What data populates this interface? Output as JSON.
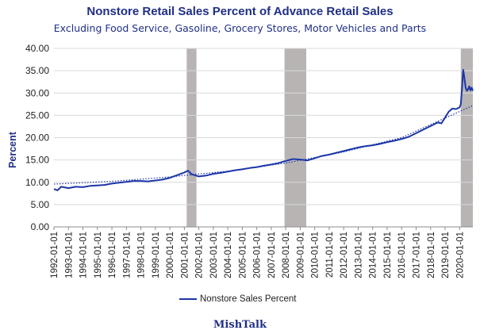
{
  "chart_data": {
    "type": "line",
    "title": "Nonstore Retail Sales Percent of Advance Retail Sales",
    "subtitle": "Excluding Food Service, Gasoline, Grocery Stores, Motor Vehicles and Parts",
    "ylabel": "Percent",
    "xlabel": "",
    "footer": "MishTalk",
    "ylim": [
      0,
      40
    ],
    "yticks": [
      "0.00",
      "5.00",
      "10.00",
      "15.00",
      "20.00",
      "25.00",
      "30.00",
      "35.00",
      "40.00"
    ],
    "xticks": [
      "1992-01-01",
      "1993-01-01",
      "1994-01-01",
      "1995-01-01",
      "1996-01-01",
      "1997-01-01",
      "1998-01-01",
      "1999-01-01",
      "2000-01-01",
      "2001-01-01",
      "2002-01-01",
      "2003-01-01",
      "2004-01-01",
      "2005-01-01",
      "2006-01-01",
      "2007-01-01",
      "2008-01-01",
      "2009-01-01",
      "2010-01-01",
      "2011-01-01",
      "2012-01-01",
      "2013-01-01",
      "2014-01-01",
      "2015-01-01",
      "2016-01-01",
      "2017-01-01",
      "2018-01-01",
      "2019-01-01",
      "2020-01-01"
    ],
    "xlim": [
      "1992-01-01",
      "2020-12-01"
    ],
    "grid": "horizontal",
    "legend": "bottom",
    "recessions": [
      [
        "2001-03-01",
        "2001-11-01"
      ],
      [
        "2007-12-01",
        "2009-06-01"
      ],
      [
        "2020-02-01",
        "2020-12-01"
      ]
    ],
    "series": [
      {
        "name": "Nonstore Sales Percent",
        "color": "#1a35a8",
        "style": "solid",
        "x": [
          "1992-01-01",
          "1992-04-01",
          "1992-07-01",
          "1993-01-01",
          "1993-07-01",
          "1994-01-01",
          "1994-07-01",
          "1995-01-01",
          "1995-07-01",
          "1996-01-01",
          "1996-07-01",
          "1997-01-01",
          "1997-07-01",
          "1998-01-01",
          "1998-07-01",
          "1999-01-01",
          "1999-07-01",
          "2000-01-01",
          "2000-07-01",
          "2001-01-01",
          "2001-04-01",
          "2001-07-01",
          "2002-01-01",
          "2002-07-01",
          "2003-01-01",
          "2003-07-01",
          "2004-01-01",
          "2004-07-01",
          "2005-01-01",
          "2005-07-01",
          "2006-01-01",
          "2006-07-01",
          "2007-01-01",
          "2007-07-01",
          "2008-01-01",
          "2008-07-01",
          "2009-01-01",
          "2009-07-01",
          "2010-01-01",
          "2010-07-01",
          "2011-01-01",
          "2011-07-01",
          "2012-01-01",
          "2012-07-01",
          "2013-01-01",
          "2013-07-01",
          "2014-01-01",
          "2014-07-01",
          "2015-01-01",
          "2015-07-01",
          "2016-01-01",
          "2016-07-01",
          "2017-01-01",
          "2017-07-01",
          "2018-01-01",
          "2018-07-01",
          "2018-10-01",
          "2019-01-01",
          "2019-04-01",
          "2019-07-01",
          "2019-10-01",
          "2020-01-01",
          "2020-02-01",
          "2020-03-01",
          "2020-04-01",
          "2020-05-01",
          "2020-06-01",
          "2020-07-01",
          "2020-08-01",
          "2020-09-01",
          "2020-10-01",
          "2020-11-01",
          "2020-12-01"
        ],
        "values": [
          8.5,
          8.2,
          9.0,
          8.7,
          9.0,
          8.9,
          9.2,
          9.3,
          9.4,
          9.7,
          9.9,
          10.1,
          10.3,
          10.3,
          10.2,
          10.4,
          10.6,
          11.0,
          11.6,
          12.2,
          12.6,
          11.8,
          11.3,
          11.5,
          11.9,
          12.1,
          12.4,
          12.7,
          12.9,
          13.2,
          13.4,
          13.7,
          14.0,
          14.3,
          14.8,
          15.2,
          15.1,
          14.9,
          15.4,
          15.9,
          16.2,
          16.6,
          17.0,
          17.4,
          17.8,
          18.1,
          18.3,
          18.6,
          19.0,
          19.3,
          19.7,
          20.2,
          21.0,
          21.8,
          22.6,
          23.4,
          23.2,
          24.5,
          25.8,
          26.5,
          26.4,
          26.8,
          27.5,
          31.0,
          35.2,
          33.5,
          31.2,
          30.5,
          30.8,
          31.5,
          30.6,
          31.2,
          30.5
        ]
      },
      {
        "style": "dotted-trend",
        "color": "#1a35a8",
        "x": [
          "1992-01-01",
          "1996-01-01",
          "2000-01-01",
          "2004-01-01",
          "2008-01-01",
          "2012-01-01",
          "2016-01-01",
          "2020-12-01"
        ],
        "values": [
          9.6,
          10.2,
          11.2,
          12.5,
          14.3,
          16.8,
          20.0,
          27.2
        ]
      }
    ]
  }
}
